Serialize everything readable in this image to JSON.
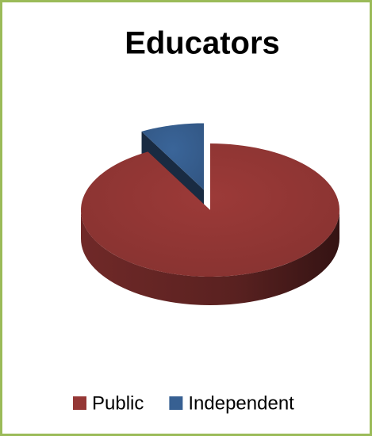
{
  "chart_data": {
    "type": "pie",
    "title": "Educators",
    "categories": [
      "Public",
      "Independent"
    ],
    "values": [
      92,
      8
    ],
    "colors": [
      "#953735",
      "#376092"
    ],
    "exploded": [
      false,
      true
    ]
  }
}
